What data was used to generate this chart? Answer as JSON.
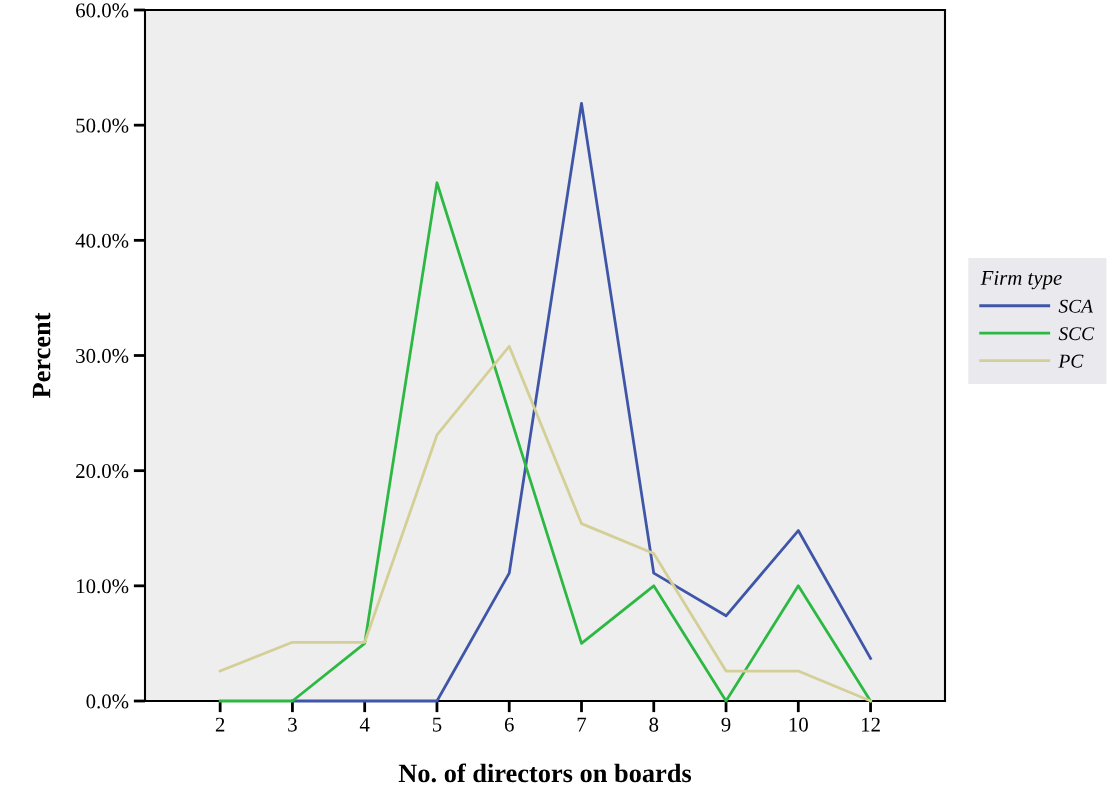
{
  "chart_data": {
    "type": "line",
    "xlabel": "No. of directors on boards",
    "ylabel": "Percent",
    "legend_title": "Firm type",
    "legend": "right",
    "grid": false,
    "marker": "none",
    "line_style": "solid",
    "categories": [
      "2",
      "3",
      "4",
      "5",
      "6",
      "7",
      "8",
      "9",
      "10",
      "12"
    ],
    "ylim": [
      0,
      60
    ],
    "yticks": [
      {
        "value": 0,
        "label": "0.0%"
      },
      {
        "value": 10,
        "label": "10.0%"
      },
      {
        "value": 20,
        "label": "20.0%"
      },
      {
        "value": 30,
        "label": "30.0%"
      },
      {
        "value": 40,
        "label": "40.0%"
      },
      {
        "value": 50,
        "label": "50.0%"
      },
      {
        "value": 60,
        "label": "60.0%"
      }
    ],
    "series": [
      {
        "name": "SCA",
        "color": "#3f56a8",
        "values": [
          null,
          0,
          0,
          0,
          11.1,
          51.9,
          11.1,
          7.4,
          14.8,
          3.7
        ]
      },
      {
        "name": "SCC",
        "color": "#2db843",
        "values": [
          0,
          0,
          5,
          45,
          25,
          5,
          10,
          0,
          10,
          0
        ]
      },
      {
        "name": "PC",
        "color": "#d4cf96",
        "values": [
          2.6,
          5.1,
          5.1,
          23.1,
          30.8,
          15.4,
          12.8,
          2.6,
          2.6,
          0
        ]
      }
    ]
  }
}
